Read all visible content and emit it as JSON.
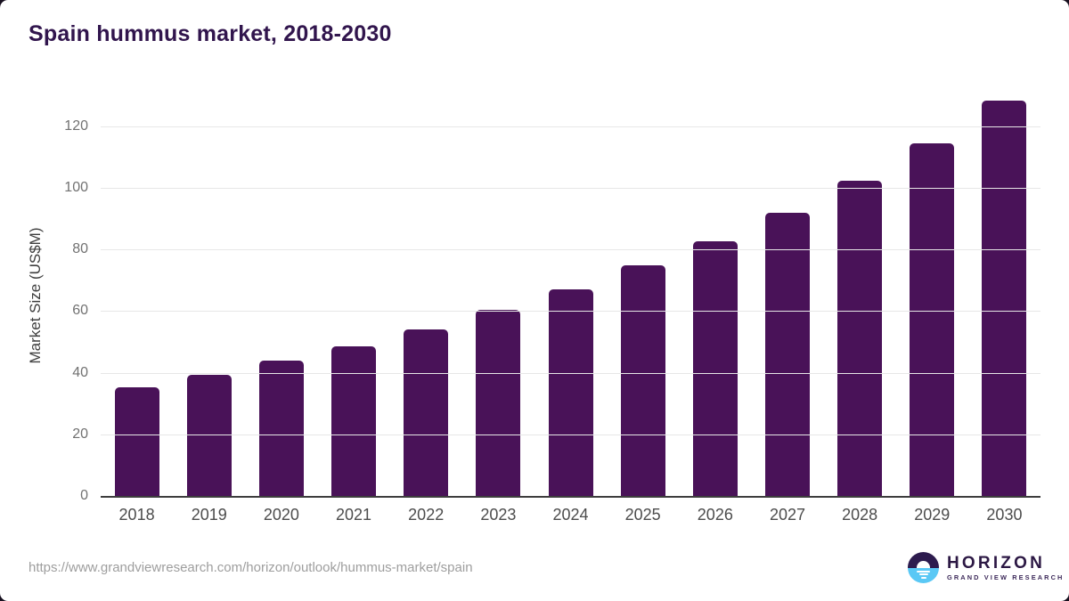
{
  "title": "Spain hummus market, 2018-2030",
  "footer": {
    "source_url": "https://www.grandviewresearch.com/horizon/outlook/hummus-market/spain",
    "logo": {
      "icon": "horizon-sunrise-icon",
      "name": "HORIZON",
      "subtitle": "GRAND VIEW RESEARCH"
    }
  },
  "colors": {
    "bar": "#491258",
    "title_text": "#31154d",
    "gridline": "#e7e7e7",
    "axis_line": "#3d3d3d",
    "y_tick_text": "#717171",
    "x_tick_text": "#4c4c4c",
    "source_url_text": "#9e9e9e",
    "logo_purple": "#2d1b4e",
    "logo_blue": "#5ac8f5"
  },
  "chart_data": {
    "type": "bar",
    "title": "Spain hummus market, 2018-2030",
    "categories": [
      "2018",
      "2019",
      "2020",
      "2021",
      "2022",
      "2023",
      "2024",
      "2025",
      "2026",
      "2027",
      "2028",
      "2029",
      "2030"
    ],
    "values": [
      35.2,
      39.2,
      43.9,
      48.5,
      54.1,
      60.3,
      67.0,
      74.7,
      82.7,
      92.0,
      102.4,
      114.5,
      128.4
    ],
    "xlabel": "",
    "ylabel": "Market Size (US$M)",
    "ylim": [
      0,
      130
    ],
    "yticks": [
      0,
      20,
      40,
      60,
      80,
      100,
      120
    ],
    "grid": true,
    "legend": false,
    "bar_color": "#491258",
    "unit": "US$M"
  }
}
